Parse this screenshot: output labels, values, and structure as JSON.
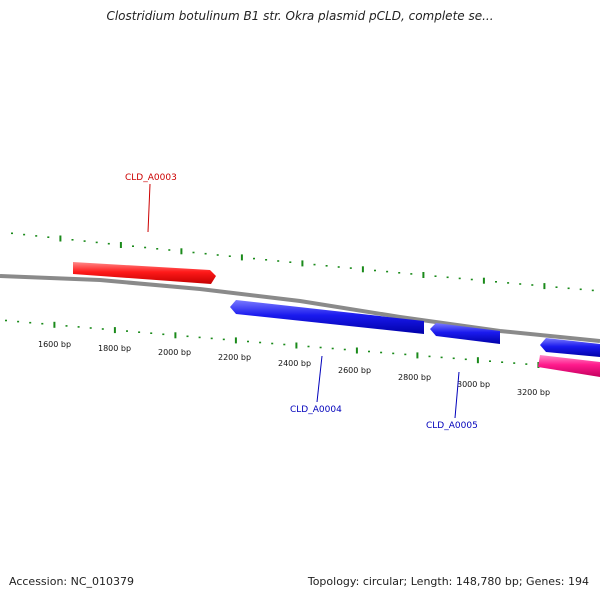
{
  "title": "Clostridium botulinum B1 str. Okra plasmid pCLD, complete se...",
  "footer": {
    "accession": "Accession: NC_010379",
    "summary": "Topology: circular; Length: 148,780 bp; Genes: 194"
  },
  "colors": {
    "backbone": "#8a8a8a",
    "tick": "#1a8a1a",
    "forward_gene": "#ff1a1a",
    "reverse_gene": "#1a1aee",
    "forward_gene_alt": "#ff1a8c",
    "forward_label": "#cc0000",
    "reverse_label": "#0000bb"
  },
  "scale_labels": [
    "1600 bp",
    "1800 bp",
    "2000 bp",
    "2200 bp",
    "2400 bp",
    "2600 bp",
    "2800 bp",
    "3000 bp",
    "3200 bp"
  ],
  "genes": [
    {
      "name": "CLD_A0003",
      "strand": "forward",
      "labeled": true
    },
    {
      "name": "CLD_A0004",
      "strand": "reverse",
      "labeled": true
    },
    {
      "name": "CLD_A0005",
      "strand": "reverse",
      "labeled": true
    },
    {
      "name": "",
      "strand": "reverse",
      "labeled": false
    },
    {
      "name": "",
      "strand": "forward",
      "labeled": false
    }
  ]
}
